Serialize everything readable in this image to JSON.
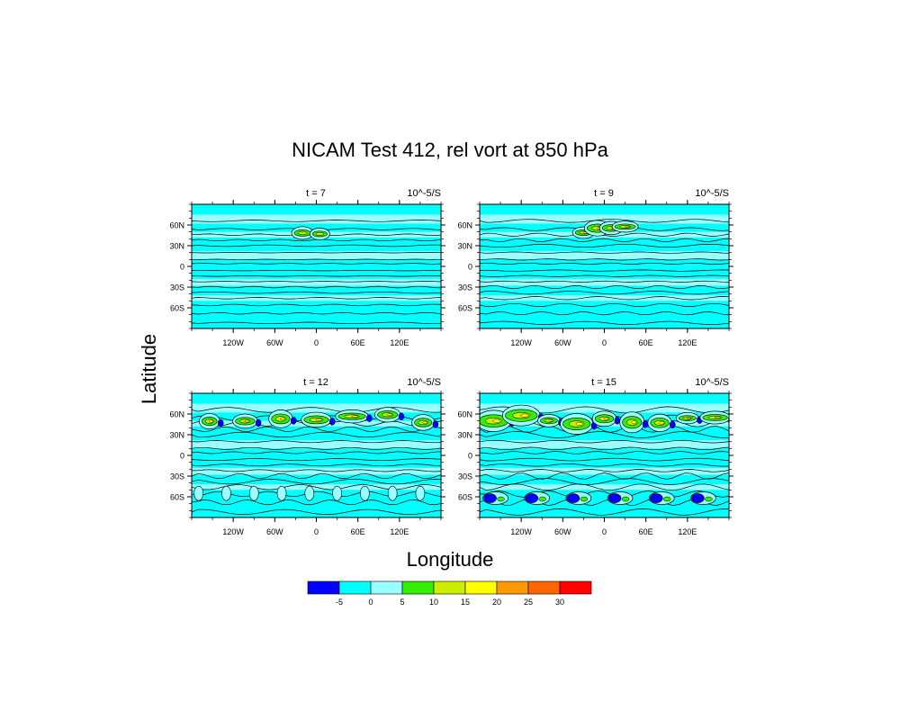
{
  "title": "NICAM Test 412, rel vort at 850 hPa",
  "ylabel": "Latitude",
  "xlabel": "Longitude",
  "colors": {
    "background": "#00ffff",
    "light": "#99ffff",
    "dark_blue": "#0000ff",
    "green": "#33ee00",
    "lime": "#ccee00",
    "yellow": "#ffff00",
    "orange": "#ff9900",
    "orange_red": "#ff6600",
    "red": "#ff0000"
  },
  "chart_data": [
    {
      "type": "contour",
      "panel_label": "t = 7",
      "units": "10^-5/S",
      "x_ticks": [
        "120W",
        "60W",
        "0",
        "60E",
        "120E"
      ],
      "y_ticks": [
        "60N",
        "30N",
        "0",
        "30S",
        "60S"
      ]
    },
    {
      "type": "contour",
      "panel_label": "t = 9",
      "units": "10^-5/S",
      "x_ticks": [
        "120W",
        "60W",
        "0",
        "60E",
        "120E"
      ],
      "y_ticks": [
        "60N",
        "30N",
        "0",
        "30S",
        "60S"
      ]
    },
    {
      "type": "contour",
      "panel_label": "t = 12",
      "units": "10^-5/S",
      "x_ticks": [
        "120W",
        "60W",
        "0",
        "60E",
        "120E"
      ],
      "y_ticks": [
        "60N",
        "30N",
        "0",
        "30S",
        "60S"
      ]
    },
    {
      "type": "contour",
      "panel_label": "t = 15",
      "units": "10^-5/S",
      "x_ticks": [
        "120W",
        "60W",
        "0",
        "60E",
        "120E"
      ],
      "y_ticks": [
        "60N",
        "30N",
        "0",
        "30S",
        "60S"
      ]
    }
  ],
  "colorbar": {
    "colors": [
      "#0000ff",
      "#00ffff",
      "#99ffff",
      "#33ee00",
      "#ccee00",
      "#ffff00",
      "#ff9900",
      "#ff6600",
      "#ff0000"
    ],
    "labels": [
      "-5",
      "0",
      "5",
      "10",
      "15",
      "20",
      "25",
      "30"
    ]
  }
}
